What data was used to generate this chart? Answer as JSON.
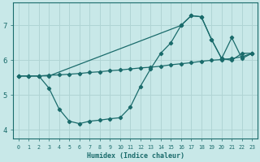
{
  "xlabel": "Humidex (Indice chaleur)",
  "bg_color": "#c8e8e8",
  "grid_color": "#b0d4d4",
  "line_color": "#1a6b6b",
  "xlim": [
    -0.5,
    23.5
  ],
  "ylim": [
    3.75,
    7.65
  ],
  "xticks": [
    0,
    1,
    2,
    3,
    4,
    5,
    6,
    7,
    8,
    9,
    10,
    11,
    12,
    13,
    14,
    15,
    16,
    17,
    18,
    19,
    20,
    21,
    22,
    23
  ],
  "yticks": [
    4,
    5,
    6,
    7
  ],
  "line1_x": [
    0,
    1,
    2,
    3,
    4,
    5,
    6,
    7,
    8,
    9,
    10,
    11,
    12,
    13,
    14,
    15,
    16,
    17,
    18,
    19,
    20,
    21,
    22,
    23
  ],
  "line1_y": [
    5.55,
    5.55,
    5.55,
    5.2,
    4.6,
    4.25,
    4.18,
    4.25,
    4.28,
    4.32,
    4.35,
    4.65,
    5.25,
    5.75,
    6.2,
    6.5,
    7.0,
    7.28,
    7.25,
    6.6,
    6.05,
    6.0,
    6.2,
    6.2
  ],
  "line2_x": [
    0,
    1,
    2,
    3,
    4,
    5,
    6,
    7,
    8,
    9,
    10,
    11,
    12,
    13,
    14,
    15,
    16,
    17,
    18,
    19,
    20,
    21,
    22,
    23
  ],
  "line2_y": [
    5.55,
    5.55,
    5.55,
    5.57,
    5.58,
    5.6,
    5.62,
    5.65,
    5.67,
    5.7,
    5.72,
    5.75,
    5.78,
    5.8,
    5.83,
    5.87,
    5.9,
    5.93,
    5.97,
    6.0,
    6.02,
    6.05,
    6.1,
    6.2
  ],
  "line3_x": [
    0,
    1,
    2,
    3,
    16,
    17,
    18,
    19,
    20,
    21,
    22,
    23
  ],
  "line3_y": [
    5.55,
    5.55,
    5.55,
    5.55,
    7.0,
    7.28,
    7.25,
    6.6,
    6.05,
    6.65,
    6.05,
    6.2
  ]
}
